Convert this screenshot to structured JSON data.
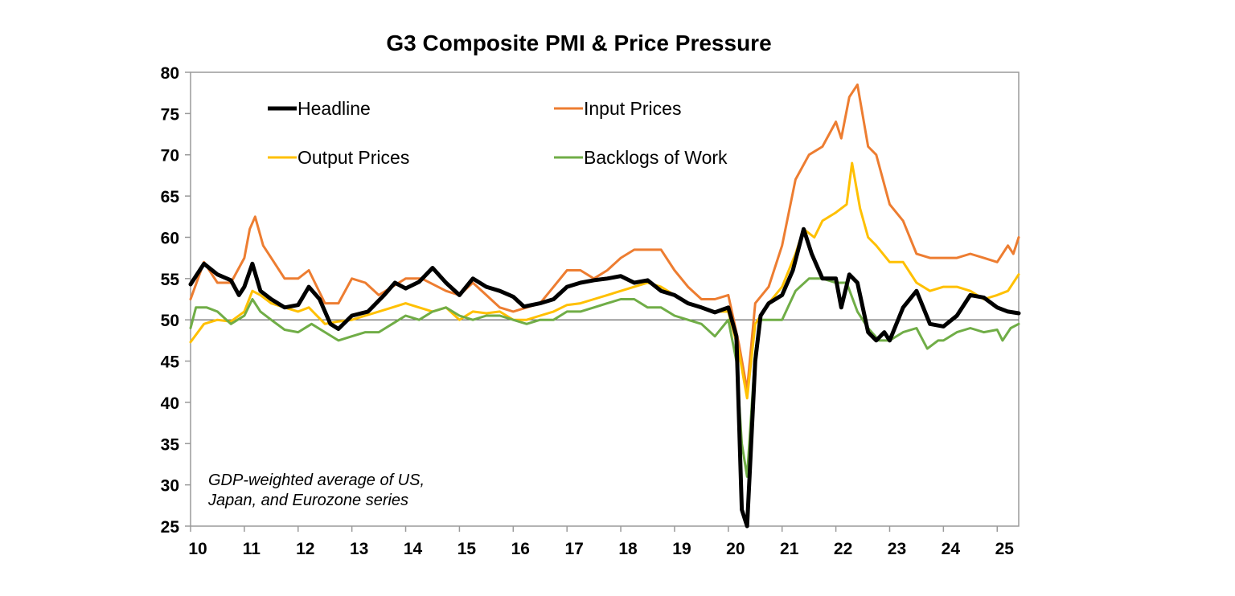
{
  "chart_data": {
    "type": "line",
    "title": "G3 Composite PMI & Price Pressure",
    "xlabel": "",
    "ylabel": "",
    "x_start": 2010.0,
    "x_end": 2025.4,
    "x_tick_labels": [
      "10",
      "11",
      "12",
      "13",
      "14",
      "15",
      "16",
      "17",
      "18",
      "19",
      "20",
      "21",
      "22",
      "23",
      "24",
      "25"
    ],
    "y_ticks": [
      80,
      75,
      70,
      65,
      60,
      55,
      50,
      45,
      40,
      35,
      30,
      25
    ],
    "ylim": [
      25,
      80
    ],
    "reference_line": 50,
    "legend_position": "top-left",
    "note": [
      "GDP-weighted average of US,",
      "Japan, and Eurozone series"
    ],
    "series": [
      {
        "name": "Headline",
        "color": "#000000",
        "points": [
          [
            2010.0,
            54.3
          ],
          [
            2010.25,
            56.8
          ],
          [
            2010.5,
            55.5
          ],
          [
            2010.75,
            54.8
          ],
          [
            2010.9,
            53.0
          ],
          [
            2011.0,
            54.0
          ],
          [
            2011.15,
            56.8
          ],
          [
            2011.3,
            53.5
          ],
          [
            2011.5,
            52.5
          ],
          [
            2011.75,
            51.5
          ],
          [
            2012.0,
            51.8
          ],
          [
            2012.2,
            54.0
          ],
          [
            2012.4,
            52.5
          ],
          [
            2012.6,
            49.5
          ],
          [
            2012.75,
            48.9
          ],
          [
            2013.0,
            50.5
          ],
          [
            2013.3,
            51.0
          ],
          [
            2013.6,
            53.0
          ],
          [
            2013.8,
            54.5
          ],
          [
            2014.0,
            53.8
          ],
          [
            2014.25,
            54.6
          ],
          [
            2014.5,
            56.3
          ],
          [
            2014.75,
            54.5
          ],
          [
            2015.0,
            53.0
          ],
          [
            2015.25,
            55.0
          ],
          [
            2015.5,
            54.0
          ],
          [
            2015.75,
            53.5
          ],
          [
            2016.0,
            52.8
          ],
          [
            2016.2,
            51.6
          ],
          [
            2016.5,
            52.0
          ],
          [
            2016.75,
            52.5
          ],
          [
            2017.0,
            54.0
          ],
          [
            2017.25,
            54.5
          ],
          [
            2017.5,
            54.8
          ],
          [
            2017.75,
            55.0
          ],
          [
            2018.0,
            55.3
          ],
          [
            2018.25,
            54.5
          ],
          [
            2018.5,
            54.8
          ],
          [
            2018.75,
            53.5
          ],
          [
            2019.0,
            53.0
          ],
          [
            2019.25,
            52.0
          ],
          [
            2019.5,
            51.5
          ],
          [
            2019.75,
            50.9
          ],
          [
            2020.0,
            51.5
          ],
          [
            2020.15,
            48.0
          ],
          [
            2020.25,
            27.0
          ],
          [
            2020.35,
            25.0
          ],
          [
            2020.5,
            45.0
          ],
          [
            2020.6,
            50.5
          ],
          [
            2020.75,
            52.0
          ],
          [
            2021.0,
            53.0
          ],
          [
            2021.2,
            56.0
          ],
          [
            2021.4,
            61.0
          ],
          [
            2021.55,
            58.0
          ],
          [
            2021.75,
            55.0
          ],
          [
            2022.0,
            55.0
          ],
          [
            2022.1,
            51.5
          ],
          [
            2022.25,
            55.5
          ],
          [
            2022.4,
            54.5
          ],
          [
            2022.6,
            48.5
          ],
          [
            2022.75,
            47.5
          ],
          [
            2022.9,
            48.5
          ],
          [
            2023.0,
            47.5
          ],
          [
            2023.25,
            51.5
          ],
          [
            2023.5,
            53.5
          ],
          [
            2023.75,
            49.5
          ],
          [
            2024.0,
            49.2
          ],
          [
            2024.25,
            50.5
          ],
          [
            2024.5,
            53.0
          ],
          [
            2024.75,
            52.7
          ],
          [
            2025.0,
            51.5
          ],
          [
            2025.2,
            51.0
          ],
          [
            2025.4,
            50.8
          ]
        ]
      },
      {
        "name": "Input Prices",
        "color": "#ED7D31",
        "points": [
          [
            2010.0,
            52.5
          ],
          [
            2010.25,
            57.0
          ],
          [
            2010.5,
            54.5
          ],
          [
            2010.75,
            54.5
          ],
          [
            2011.0,
            57.5
          ],
          [
            2011.1,
            61.0
          ],
          [
            2011.2,
            62.5
          ],
          [
            2011.35,
            59.0
          ],
          [
            2011.5,
            57.5
          ],
          [
            2011.75,
            55.0
          ],
          [
            2012.0,
            55.0
          ],
          [
            2012.2,
            56.0
          ],
          [
            2012.5,
            52.0
          ],
          [
            2012.75,
            52.0
          ],
          [
            2013.0,
            55.0
          ],
          [
            2013.25,
            54.5
          ],
          [
            2013.5,
            53.0
          ],
          [
            2013.75,
            54.0
          ],
          [
            2014.0,
            55.0
          ],
          [
            2014.3,
            55.0
          ],
          [
            2014.6,
            54.0
          ],
          [
            2014.75,
            53.5
          ],
          [
            2015.0,
            53.0
          ],
          [
            2015.25,
            54.5
          ],
          [
            2015.5,
            53.0
          ],
          [
            2015.75,
            51.5
          ],
          [
            2016.0,
            51.0
          ],
          [
            2016.25,
            51.5
          ],
          [
            2016.5,
            52.0
          ],
          [
            2016.75,
            54.0
          ],
          [
            2017.0,
            56.0
          ],
          [
            2017.25,
            56.0
          ],
          [
            2017.5,
            55.0
          ],
          [
            2017.75,
            56.0
          ],
          [
            2018.0,
            57.5
          ],
          [
            2018.25,
            58.5
          ],
          [
            2018.5,
            58.5
          ],
          [
            2018.75,
            58.5
          ],
          [
            2019.0,
            56.0
          ],
          [
            2019.25,
            54.0
          ],
          [
            2019.5,
            52.5
          ],
          [
            2019.75,
            52.5
          ],
          [
            2020.0,
            53.0
          ],
          [
            2020.2,
            47.0
          ],
          [
            2020.35,
            41.5
          ],
          [
            2020.5,
            52.0
          ],
          [
            2020.75,
            54.0
          ],
          [
            2021.0,
            59.0
          ],
          [
            2021.25,
            67.0
          ],
          [
            2021.5,
            70.0
          ],
          [
            2021.75,
            71.0
          ],
          [
            2022.0,
            74.0
          ],
          [
            2022.1,
            72.0
          ],
          [
            2022.25,
            77.0
          ],
          [
            2022.4,
            78.5
          ],
          [
            2022.6,
            71.0
          ],
          [
            2022.75,
            70.0
          ],
          [
            2023.0,
            64.0
          ],
          [
            2023.25,
            62.0
          ],
          [
            2023.5,
            58.0
          ],
          [
            2023.75,
            57.5
          ],
          [
            2024.0,
            57.5
          ],
          [
            2024.25,
            57.5
          ],
          [
            2024.5,
            58.0
          ],
          [
            2024.75,
            57.5
          ],
          [
            2025.0,
            57.0
          ],
          [
            2025.2,
            59.0
          ],
          [
            2025.3,
            58.0
          ],
          [
            2025.4,
            60.0
          ]
        ]
      },
      {
        "name": "Output Prices",
        "color": "#FFC000",
        "points": [
          [
            2010.0,
            47.3
          ],
          [
            2010.25,
            49.5
          ],
          [
            2010.5,
            50.0
          ],
          [
            2010.75,
            49.8
          ],
          [
            2011.0,
            51.0
          ],
          [
            2011.15,
            53.5
          ],
          [
            2011.3,
            53.0
          ],
          [
            2011.5,
            52.0
          ],
          [
            2011.75,
            51.5
          ],
          [
            2012.0,
            51.0
          ],
          [
            2012.2,
            51.5
          ],
          [
            2012.5,
            49.5
          ],
          [
            2012.75,
            49.8
          ],
          [
            2013.0,
            50.0
          ],
          [
            2013.25,
            50.5
          ],
          [
            2013.5,
            51.0
          ],
          [
            2013.75,
            51.5
          ],
          [
            2014.0,
            52.0
          ],
          [
            2014.25,
            51.5
          ],
          [
            2014.5,
            51.0
          ],
          [
            2014.75,
            51.5
          ],
          [
            2015.0,
            50.0
          ],
          [
            2015.25,
            51.0
          ],
          [
            2015.5,
            50.8
          ],
          [
            2015.75,
            51.0
          ],
          [
            2016.0,
            50.0
          ],
          [
            2016.25,
            50.0
          ],
          [
            2016.5,
            50.5
          ],
          [
            2016.75,
            51.0
          ],
          [
            2017.0,
            51.8
          ],
          [
            2017.25,
            52.0
          ],
          [
            2017.5,
            52.5
          ],
          [
            2017.75,
            53.0
          ],
          [
            2018.0,
            53.5
          ],
          [
            2018.25,
            54.0
          ],
          [
            2018.5,
            54.5
          ],
          [
            2018.75,
            54.0
          ],
          [
            2019.0,
            53.0
          ],
          [
            2019.25,
            52.0
          ],
          [
            2019.5,
            51.5
          ],
          [
            2019.75,
            51.0
          ],
          [
            2020.0,
            51.0
          ],
          [
            2020.2,
            46.0
          ],
          [
            2020.35,
            40.5
          ],
          [
            2020.5,
            49.5
          ],
          [
            2020.75,
            52.0
          ],
          [
            2021.0,
            54.0
          ],
          [
            2021.25,
            58.0
          ],
          [
            2021.4,
            61.0
          ],
          [
            2021.6,
            60.0
          ],
          [
            2021.75,
            62.0
          ],
          [
            2022.0,
            63.0
          ],
          [
            2022.2,
            64.0
          ],
          [
            2022.3,
            69.0
          ],
          [
            2022.45,
            63.5
          ],
          [
            2022.6,
            60.0
          ],
          [
            2022.75,
            59.0
          ],
          [
            2023.0,
            57.0
          ],
          [
            2023.25,
            57.0
          ],
          [
            2023.5,
            54.5
          ],
          [
            2023.75,
            53.5
          ],
          [
            2024.0,
            54.0
          ],
          [
            2024.25,
            54.0
          ],
          [
            2024.5,
            53.5
          ],
          [
            2024.75,
            52.5
          ],
          [
            2025.0,
            53.0
          ],
          [
            2025.2,
            53.5
          ],
          [
            2025.4,
            55.5
          ]
        ]
      },
      {
        "name": "Backlogs of Work",
        "color": "#70AD47",
        "points": [
          [
            2010.0,
            49.0
          ],
          [
            2010.1,
            51.5
          ],
          [
            2010.3,
            51.5
          ],
          [
            2010.5,
            51.0
          ],
          [
            2010.75,
            49.5
          ],
          [
            2011.0,
            50.5
          ],
          [
            2011.15,
            52.5
          ],
          [
            2011.3,
            51.0
          ],
          [
            2011.5,
            50.0
          ],
          [
            2011.75,
            48.8
          ],
          [
            2012.0,
            48.5
          ],
          [
            2012.25,
            49.5
          ],
          [
            2012.5,
            48.5
          ],
          [
            2012.75,
            47.5
          ],
          [
            2013.0,
            48.0
          ],
          [
            2013.25,
            48.5
          ],
          [
            2013.5,
            48.5
          ],
          [
            2013.75,
            49.5
          ],
          [
            2014.0,
            50.5
          ],
          [
            2014.25,
            50.0
          ],
          [
            2014.5,
            51.0
          ],
          [
            2014.75,
            51.5
          ],
          [
            2015.0,
            50.5
          ],
          [
            2015.25,
            50.0
          ],
          [
            2015.5,
            50.5
          ],
          [
            2015.75,
            50.5
          ],
          [
            2016.0,
            50.0
          ],
          [
            2016.25,
            49.5
          ],
          [
            2016.5,
            50.0
          ],
          [
            2016.75,
            50.0
          ],
          [
            2017.0,
            51.0
          ],
          [
            2017.25,
            51.0
          ],
          [
            2017.5,
            51.5
          ],
          [
            2017.75,
            52.0
          ],
          [
            2018.0,
            52.5
          ],
          [
            2018.25,
            52.5
          ],
          [
            2018.5,
            51.5
          ],
          [
            2018.75,
            51.5
          ],
          [
            2019.0,
            50.5
          ],
          [
            2019.25,
            50.0
          ],
          [
            2019.5,
            49.5
          ],
          [
            2019.75,
            48.0
          ],
          [
            2020.0,
            50.0
          ],
          [
            2020.15,
            45.0
          ],
          [
            2020.25,
            35.0
          ],
          [
            2020.35,
            31.0
          ],
          [
            2020.5,
            46.0
          ],
          [
            2020.6,
            50.0
          ],
          [
            2020.75,
            50.0
          ],
          [
            2021.0,
            50.0
          ],
          [
            2021.25,
            53.5
          ],
          [
            2021.5,
            55.0
          ],
          [
            2021.75,
            55.0
          ],
          [
            2022.0,
            54.5
          ],
          [
            2022.2,
            54.5
          ],
          [
            2022.4,
            51.0
          ],
          [
            2022.6,
            49.0
          ],
          [
            2022.8,
            47.5
          ],
          [
            2023.0,
            47.5
          ],
          [
            2023.25,
            48.5
          ],
          [
            2023.5,
            49.0
          ],
          [
            2023.7,
            46.5
          ],
          [
            2023.9,
            47.5
          ],
          [
            2024.0,
            47.5
          ],
          [
            2024.25,
            48.5
          ],
          [
            2024.5,
            49.0
          ],
          [
            2024.75,
            48.5
          ],
          [
            2025.0,
            48.8
          ],
          [
            2025.1,
            47.5
          ],
          [
            2025.25,
            49.0
          ],
          [
            2025.4,
            49.5
          ]
        ]
      }
    ]
  }
}
